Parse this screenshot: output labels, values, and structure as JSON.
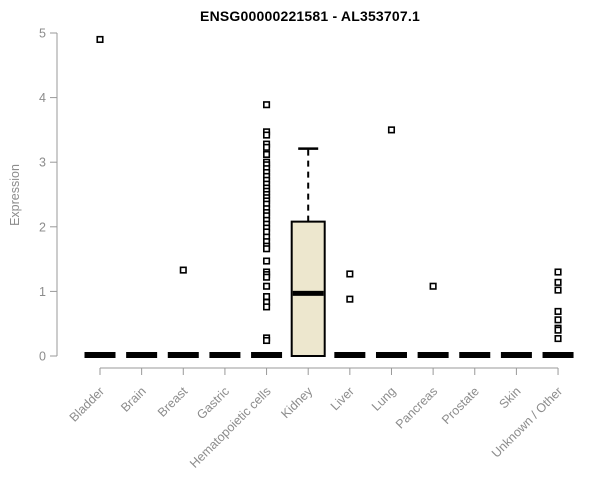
{
  "chart_data": {
    "type": "boxplot",
    "title": "ENSG00000221581 - AL353707.1",
    "ylabel": "Expression",
    "xlabel": "",
    "ylim": [
      0,
      5
    ],
    "yticks": [
      0,
      1,
      2,
      3,
      4,
      5
    ],
    "grid": false,
    "legend_position": "none",
    "colors": {
      "box_fill": "#EDE7CE",
      "box_stroke": "#000000",
      "marker_stroke": "#000000",
      "marker_fill": "#FFFFFF",
      "axis_line": "#999999",
      "tick_text": "#8C8C8C",
      "title_text": "#000000"
    },
    "categories": [
      "Bladder",
      "Brain",
      "Breast",
      "Gastric",
      "Hematopoietic cells",
      "Kidney",
      "Liver",
      "Lung",
      "Pancreas",
      "Prostate",
      "Skin",
      "Unknown / Other"
    ],
    "series": [
      {
        "name": "Bladder",
        "q1": 0,
        "median": 0,
        "q3": 0,
        "whisker_low": 0,
        "whisker_high": 0,
        "outliers": [
          4.9
        ]
      },
      {
        "name": "Brain",
        "q1": 0,
        "median": 0,
        "q3": 0,
        "whisker_low": 0,
        "whisker_high": 0,
        "outliers": []
      },
      {
        "name": "Breast",
        "q1": 0,
        "median": 0,
        "q3": 0,
        "whisker_low": 0,
        "whisker_high": 0,
        "outliers": [
          1.33
        ]
      },
      {
        "name": "Gastric",
        "q1": 0,
        "median": 0,
        "q3": 0,
        "whisker_low": 0,
        "whisker_high": 0,
        "outliers": []
      },
      {
        "name": "Hematopoietic cells",
        "q1": 0,
        "median": 0,
        "q3": 0,
        "whisker_low": 0,
        "whisker_high": 0,
        "outliers": [
          3.89,
          3.47,
          3.42,
          3.28,
          3.23,
          3.12,
          3.0,
          2.96,
          2.9,
          2.84,
          2.78,
          2.72,
          2.66,
          2.6,
          2.55,
          2.5,
          2.45,
          2.4,
          2.35,
          2.28,
          2.22,
          2.17,
          2.1,
          2.04,
          1.98,
          1.92,
          1.84,
          1.77,
          1.7,
          1.66,
          1.47,
          1.3,
          1.26,
          1.22,
          1.08,
          0.92,
          0.83,
          0.76,
          0.28,
          0.24
        ]
      },
      {
        "name": "Kidney",
        "q1": 0,
        "median": 0.97,
        "q3": 2.08,
        "whisker_low": 0,
        "whisker_high": 3.21,
        "outliers": []
      },
      {
        "name": "Liver",
        "q1": 0,
        "median": 0,
        "q3": 0,
        "whisker_low": 0,
        "whisker_high": 0,
        "outliers": [
          1.27,
          0.88
        ]
      },
      {
        "name": "Lung",
        "q1": 0,
        "median": 0,
        "q3": 0,
        "whisker_low": 0,
        "whisker_high": 0,
        "outliers": [
          3.5
        ]
      },
      {
        "name": "Pancreas",
        "q1": 0,
        "median": 0,
        "q3": 0,
        "whisker_low": 0,
        "whisker_high": 0,
        "outliers": [
          1.08
        ]
      },
      {
        "name": "Prostate",
        "q1": 0,
        "median": 0,
        "q3": 0,
        "whisker_low": 0,
        "whisker_high": 0,
        "outliers": []
      },
      {
        "name": "Skin",
        "q1": 0,
        "median": 0,
        "q3": 0,
        "whisker_low": 0,
        "whisker_high": 0,
        "outliers": []
      },
      {
        "name": "Unknown / Other",
        "q1": 0,
        "median": 0,
        "q3": 0,
        "whisker_low": 0,
        "whisker_high": 0,
        "outliers": [
          1.3,
          1.14,
          1.02,
          0.69,
          0.56,
          0.43,
          0.4,
          0.27
        ]
      }
    ]
  }
}
